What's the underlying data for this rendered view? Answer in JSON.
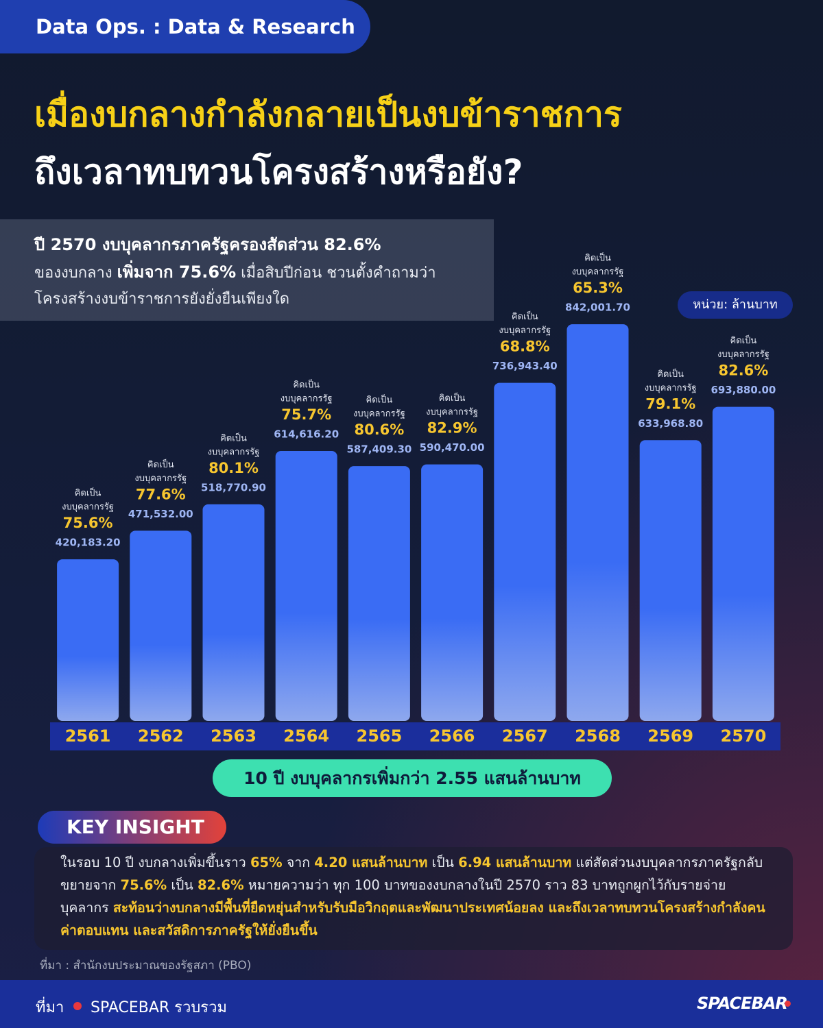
{
  "header": {
    "tag": "Data Ops.  : Data & Research"
  },
  "title": {
    "line1": "เมื่องบกลางกำลังกลายเป็นงบข้าราชการ",
    "line2": "ถึงเวลาทบทวนโครงสร้างหรือยัง?"
  },
  "subtitle": {
    "lines": [
      [
        {
          "text": "ปี 2570 งบบุคลากรภาครัฐครองสัดส่วน 82.6%",
          "bold": true
        }
      ],
      [
        {
          "text": "ของงบกลาง ",
          "bold": false
        },
        {
          "text": "เพิ่มจาก 75.6%",
          "bold": true
        },
        {
          "text": " เมื่อสิบปีก่อน ชวนตั้งคำถามว่า",
          "bold": false
        }
      ],
      [
        {
          "text": "โครงสร้างงบข้าราชการยังยั่งยืนเพียงใด",
          "bold": false
        }
      ]
    ]
  },
  "unit": "หน่วย: ล้านบาท",
  "chart_data": {
    "type": "bar",
    "categories": [
      "2561",
      "2562",
      "2563",
      "2564",
      "2565",
      "2566",
      "2567",
      "2568",
      "2569",
      "2570"
    ],
    "values": [
      420183.2,
      471532,
      518770.9,
      614616.2,
      587409.3,
      590470,
      736943.4,
      842001.7,
      633968.8,
      693880
    ],
    "value_labels": [
      "420,183.20",
      "471,532.00",
      "518,770.90",
      "614,616.20",
      "587,409.30",
      "590,470.00",
      "736,943.40",
      "842,001.70",
      "633,968.80",
      "693,880.00"
    ],
    "annotation_prefix": "คิดเป็น",
    "annotation_label": "งบบุคลากรรัฐ",
    "share_labels": [
      "75.6%",
      "77.6%",
      "80.1%",
      "75.7%",
      "80.6%",
      "82.9%",
      "68.8%",
      "65.3%",
      "79.1%",
      "82.6%"
    ],
    "color": "#3a6cf4",
    "ylim": [
      130000,
      900000
    ]
  },
  "summary": "10 ปี งบบุคลากรเพิ่มกว่า 2.55 แสนล้านบาท",
  "insight": {
    "heading": "KEY INSIGHT",
    "segments": [
      {
        "text": "ในรอบ 10 ปี งบกลางเพิ่มขึ้นราว ",
        "highlight": false
      },
      {
        "text": "65%",
        "highlight": true
      },
      {
        "text": " จาก ",
        "highlight": false
      },
      {
        "text": "4.20 แสนล้านบาท",
        "highlight": true
      },
      {
        "text": " เป็น ",
        "highlight": false
      },
      {
        "text": "6.94 แสนล้านบาท",
        "highlight": true
      },
      {
        "text": " แต่สัดส่วนงบบุคลากรภาครัฐกลับขยายจาก ",
        "highlight": false
      },
      {
        "text": "75.6%",
        "highlight": true
      },
      {
        "text": " เป็น ",
        "highlight": false
      },
      {
        "text": "82.6%",
        "highlight": true
      },
      {
        "text": " หมายความว่า ทุก 100 บาทของงบกลางในปี 2570 ราว 83 บาทถูกผูกไว้กับรายจ่ายบุคลากร ",
        "highlight": false
      },
      {
        "text": "สะท้อนว่างบกลางมีพื้นที่ยืดหยุ่นสำหรับรับมือวิกฤตและพัฒนาประเทศน้อยลง และถึงเวลาทบทวนโครงสร้างกำลังคน ค่าตอบแทน และสวัสดิการภาครัฐให้ยั่งยืนขึ้น",
        "highlight": true
      }
    ]
  },
  "source": "ที่มา : สำนักงบประมาณของรัฐสภา (PBO)",
  "footer": {
    "label": "ที่มา",
    "credit": "SPACEBAR รวบรวม",
    "logo": "SPACEBAR"
  }
}
